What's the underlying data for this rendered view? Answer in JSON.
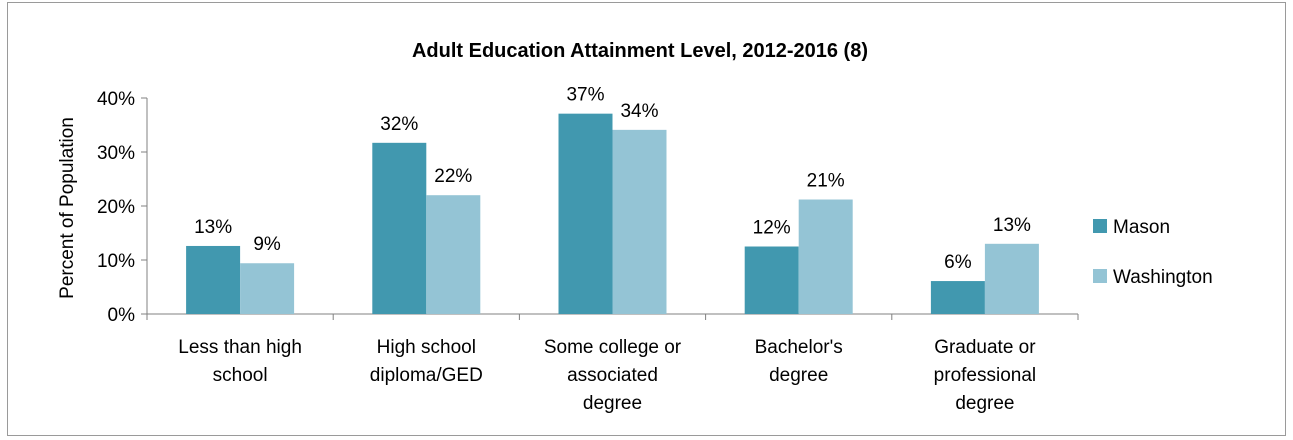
{
  "chart_data": {
    "type": "bar",
    "title": "Adult Education Attainment Level, 2012-2016 (8)",
    "ylabel": "Percent of Population",
    "xlabel": "",
    "ylim": [
      0,
      40
    ],
    "yticks": [
      "0%",
      "10%",
      "20%",
      "30%",
      "40%"
    ],
    "ytick_values": [
      0,
      10,
      20,
      30,
      40
    ],
    "categories": [
      [
        "Less than high",
        "school"
      ],
      [
        "High school",
        "diploma/GED"
      ],
      [
        "Some college or",
        "associated",
        "degree"
      ],
      [
        "Bachelor's",
        "degree"
      ],
      [
        "Graduate or",
        "professional",
        "degree"
      ]
    ],
    "series": [
      {
        "name": "Mason",
        "color": "#4198af",
        "values": [
          12.6,
          31.7,
          37.1,
          12.5,
          6.1
        ],
        "labels": [
          "13%",
          "32%",
          "37%",
          "12%",
          "6%"
        ]
      },
      {
        "name": "Washington",
        "color": "#94c4d5",
        "values": [
          9.4,
          22.0,
          34.1,
          21.2,
          13.0
        ],
        "labels": [
          "9%",
          "22%",
          "34%",
          "21%",
          "13%"
        ]
      }
    ],
    "legend_position": "right",
    "grid": false
  }
}
